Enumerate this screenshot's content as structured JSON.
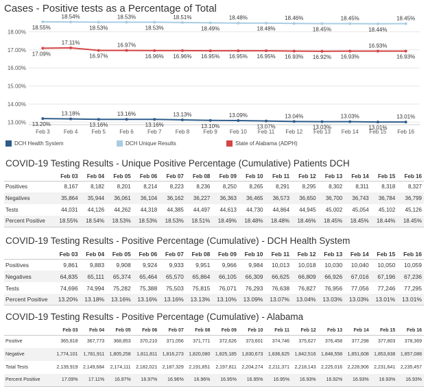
{
  "chart_data": {
    "type": "line",
    "title": "Cases - Positive tests as a Percentage of Total",
    "categories": [
      "Feb 3",
      "Feb 4",
      "Feb 5",
      "Feb 6",
      "Feb 7",
      "Feb 8",
      "Feb 9",
      "Feb 10",
      "Feb 11",
      "Feb 12",
      "Feb 13",
      "Feb 14",
      "Feb 15",
      "Feb 16"
    ],
    "yticks": [
      "18.00%",
      "17.00%",
      "16.00%",
      "15.00%",
      "14.00%",
      "13.00%"
    ],
    "ylim": [
      12.94,
      18.62
    ],
    "grid": true,
    "legend_position": "bottom",
    "series": [
      {
        "name": "DCH Health System",
        "color": "#2e5c8a",
        "values": [
          13.2,
          13.18,
          13.16,
          13.16,
          13.16,
          13.13,
          13.1,
          13.09,
          13.07,
          13.04,
          13.03,
          13.03,
          13.01,
          13.01
        ],
        "labels": [
          "13.20%",
          "13.18%",
          "13.16%",
          "13.16%",
          "13.16%",
          "13.13%",
          "13.10%",
          "13.09%",
          "13.07%",
          "13.04%",
          "13.03%",
          "13.03%",
          "13.01%",
          "13.01%"
        ]
      },
      {
        "name": "DCH Unique Results",
        "color": "#a8cce3",
        "values": [
          18.55,
          18.54,
          18.53,
          18.53,
          18.53,
          18.51,
          18.49,
          18.48,
          18.48,
          18.46,
          18.45,
          18.45,
          18.44,
          18.45
        ],
        "labels": [
          "18.55%",
          "18.54%",
          "18.53%",
          "18.53%",
          "18.53%",
          "18.51%",
          "18.49%",
          "18.48%",
          "18.48%",
          "18.46%",
          "18.45%",
          "18.45%",
          "18.44%",
          "18.45%"
        ]
      },
      {
        "name": "State of Alabama (ADPH)",
        "color": "#d64545",
        "values": [
          17.09,
          17.11,
          16.97,
          16.97,
          16.96,
          16.96,
          16.95,
          16.95,
          16.95,
          16.93,
          16.92,
          16.93,
          16.93,
          16.93
        ],
        "labels": [
          "17.09%",
          "17.11%",
          "16.97%",
          "16.97%",
          "16.96%",
          "16.96%",
          "16.95%",
          "16.95%",
          "16.95%",
          "16.93%",
          "16.92%",
          "16.93%",
          "16.93%",
          "16.93%"
        ]
      }
    ]
  },
  "tables": [
    {
      "title": "COVID-19 Testing Results - Unique Positive Percentage (Cumulative) Patients DCH",
      "columns": [
        "Feb 03",
        "Feb 04",
        "Feb 05",
        "Feb 06",
        "Feb 07",
        "Feb 08",
        "Feb 09",
        "Feb 10",
        "Feb 11",
        "Feb 12",
        "Feb 13",
        "Feb 14",
        "Feb 15",
        "Feb 16"
      ],
      "rows": [
        {
          "label": "Positives",
          "values": [
            "8,167",
            "8,182",
            "8,201",
            "8,214",
            "8,223",
            "8,236",
            "8,250",
            "8,265",
            "8,291",
            "8,295",
            "8,302",
            "8,311",
            "8,318",
            "8,327"
          ]
        },
        {
          "label": "Negatives",
          "values": [
            "35,864",
            "35,944",
            "36,061",
            "36,104",
            "36,162",
            "36,227",
            "36,363",
            "36,465",
            "36,573",
            "36,650",
            "36,700",
            "36,743",
            "36,784",
            "36,799"
          ]
        },
        {
          "label": "Tests",
          "values": [
            "44,031",
            "44,126",
            "44,262",
            "44,318",
            "44,385",
            "44,497",
            "44,613",
            "44,730",
            "44,864",
            "44,945",
            "45,002",
            "45,054",
            "45,102",
            "45,126"
          ]
        },
        {
          "label": "Percent Positive",
          "values": [
            "18.55%",
            "18.54%",
            "18.53%",
            "18.53%",
            "18.53%",
            "18.51%",
            "18.49%",
            "18.48%",
            "18.48%",
            "18.46%",
            "18.45%",
            "18.45%",
            "18.44%",
            "18.45%"
          ]
        }
      ]
    },
    {
      "title": "COVID-19 Testing Results - Positive Percentage (Cumulative) - DCH Health System",
      "columns": [
        "Feb 03",
        "Feb 04",
        "Feb 05",
        "Feb 06",
        "Feb 07",
        "Feb 08",
        "Feb 09",
        "Feb 10",
        "Feb 11",
        "Feb 12",
        "Feb 13",
        "Feb 14",
        "Feb 15",
        "Feb 16"
      ],
      "rows": [
        {
          "label": "Positives",
          "values": [
            "9,861",
            "9,883",
            "9,908",
            "9,924",
            "9,933",
            "9,951",
            "9,966",
            "9,984",
            "10,013",
            "10,018",
            "10,030",
            "10,040",
            "10,050",
            "10,059"
          ]
        },
        {
          "label": "Negatives",
          "values": [
            "64,835",
            "65,111",
            "65,374",
            "65,464",
            "65,570",
            "65,864",
            "66,105",
            "66,309",
            "66,625",
            "66,809",
            "66,926",
            "67,016",
            "67,196",
            "67,236"
          ]
        },
        {
          "label": "Tests",
          "values": [
            "74,696",
            "74,994",
            "75,282",
            "75,388",
            "75,503",
            "75,815",
            "76,071",
            "76,293",
            "76,638",
            "76,827",
            "76,956",
            "77,056",
            "77,246",
            "77,295"
          ]
        },
        {
          "label": "Percent Positive",
          "values": [
            "13.20%",
            "13.18%",
            "13.16%",
            "13.16%",
            "13.16%",
            "13.13%",
            "13.10%",
            "13.09%",
            "13.07%",
            "13.04%",
            "13.03%",
            "13.03%",
            "13.01%",
            "13.01%"
          ]
        }
      ]
    },
    {
      "title": "COVID-19 Testing Results - Positive Percentage (Cumulative) - Alabama",
      "columns": [
        "Feb 03",
        "Feb 04",
        "Feb 05",
        "Feb 06",
        "Feb 07",
        "Feb 08",
        "Feb 09",
        "Feb 10",
        "Feb 11",
        "Feb 12",
        "Feb 13",
        "Feb 14",
        "Feb 15",
        "Feb 16"
      ],
      "rows": [
        {
          "label": "Positive",
          "values": [
            "365,818",
            "367,773",
            "368,853",
            "370,210",
            "371,056",
            "371,771",
            "372,626",
            "373,601",
            "374,746",
            "375,627",
            "376,458",
            "377,298",
            "377,803",
            "378,369"
          ]
        },
        {
          "label": "Negative",
          "values": [
            "1,774,101",
            "1,781,911",
            "1,805,258",
            "1,811,811",
            "1,816,273",
            "1,820,080",
            "1,825,185",
            "1,830,673",
            "1,836,625",
            "1,842,516",
            "1,848,558",
            "1,851,608",
            "1,853,838",
            "1,857,088"
          ]
        },
        {
          "label": "Total Tests",
          "values": [
            "2,139,919",
            "2,149,684",
            "2,174,111",
            "2,182,021",
            "2,187,329",
            "2,191,851",
            "2,197,811",
            "2,204,274",
            "2,211,371",
            "2,218,143",
            "2,225,016",
            "2,228,906",
            "2,231,641",
            "2,235,457"
          ]
        },
        {
          "label": "Percent Positive",
          "values": [
            "17.09%",
            "17.11%",
            "16.97%",
            "16.97%",
            "16.96%",
            "16.96%",
            "16.95%",
            "16.95%",
            "16.95%",
            "16.93%",
            "16.92%",
            "16.93%",
            "16.93%",
            "16.93%"
          ]
        }
      ]
    }
  ]
}
